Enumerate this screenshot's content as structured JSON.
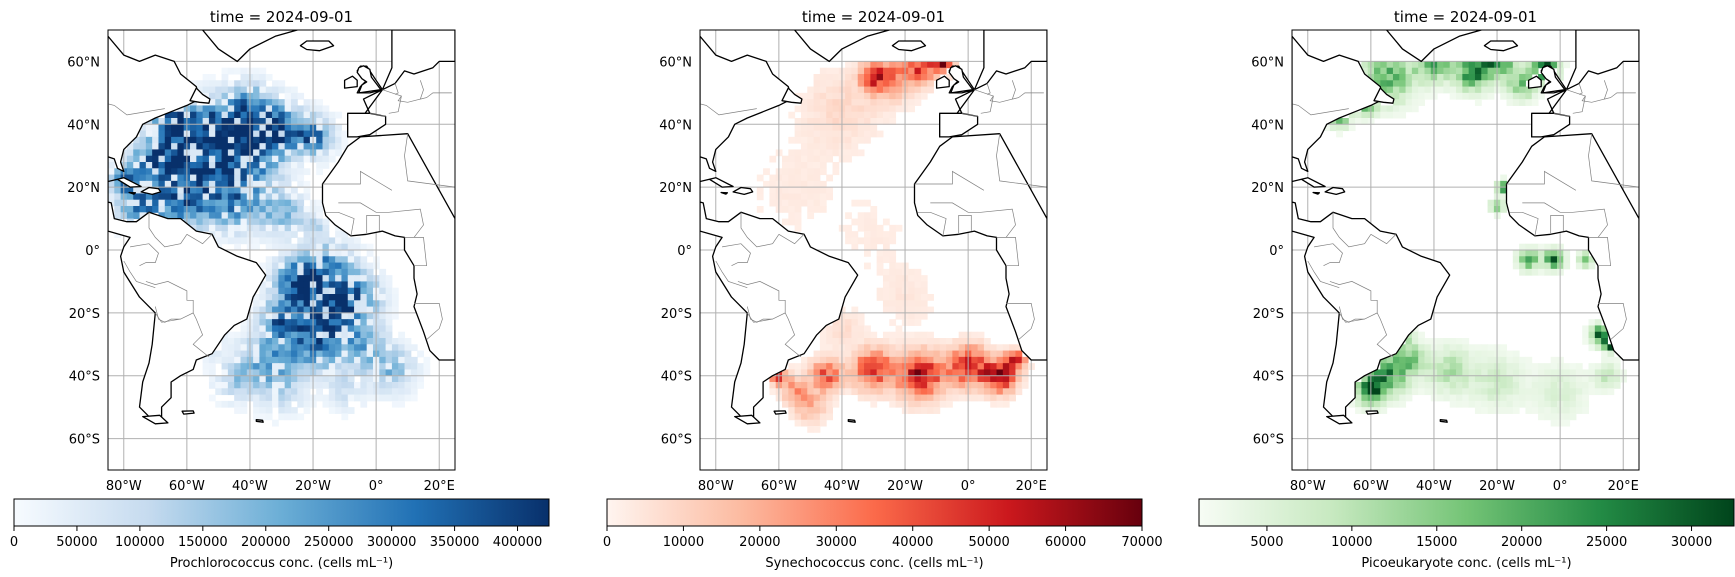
{
  "chart_data": [
    {
      "type": "heatmap",
      "title": "time = 2024-09-01",
      "colorbar": {
        "label": "Prochlorococcus conc. (cells mL⁻¹)",
        "ticks": [
          "0",
          "50000",
          "100000",
          "150000",
          "200000",
          "250000",
          "300000",
          "350000",
          "400000"
        ],
        "tick_values": [
          0,
          50000,
          100000,
          150000,
          200000,
          250000,
          300000,
          350000,
          400000
        ],
        "range": [
          0,
          425000
        ],
        "colormap": "Blues",
        "colors": [
          "#f7fbff",
          "#c6dbef",
          "#6baed6",
          "#2171b5",
          "#08306b"
        ]
      },
      "xaxis": {
        "ticks": [
          "80°W",
          "60°W",
          "40°W",
          "20°W",
          "0°",
          "20°E"
        ],
        "tick_values": [
          -80,
          -60,
          -40,
          -20,
          0,
          20
        ],
        "range": [
          -85,
          25
        ]
      },
      "yaxis": {
        "ticks": [
          "60°N",
          "40°N",
          "20°N",
          "0°",
          "20°S",
          "40°S",
          "60°S"
        ],
        "tick_values": [
          60,
          40,
          20,
          0,
          -20,
          -40,
          -60
        ],
        "range": [
          -70,
          70
        ]
      },
      "grid": true
    },
    {
      "type": "heatmap",
      "title": "time = 2024-09-01",
      "colorbar": {
        "label": "Synechococcus conc. (cells mL⁻¹)",
        "ticks": [
          "0",
          "10000",
          "20000",
          "30000",
          "40000",
          "50000",
          "60000",
          "70000"
        ],
        "tick_values": [
          0,
          10000,
          20000,
          30000,
          40000,
          50000,
          60000,
          70000
        ],
        "range": [
          0,
          70000
        ],
        "colormap": "Reds",
        "colors": [
          "#fff5f0",
          "#fcbba1",
          "#fb6a4a",
          "#cb181d",
          "#67000d"
        ]
      },
      "xaxis": {
        "ticks": [
          "80°W",
          "60°W",
          "40°W",
          "20°W",
          "0°",
          "20°E"
        ],
        "tick_values": [
          -80,
          -60,
          -40,
          -20,
          0,
          20
        ],
        "range": [
          -85,
          25
        ]
      },
      "yaxis": {
        "ticks": [
          "60°N",
          "40°N",
          "20°N",
          "0°",
          "20°S",
          "40°S",
          "60°S"
        ],
        "tick_values": [
          60,
          40,
          20,
          0,
          -20,
          -40,
          -60
        ],
        "range": [
          -70,
          70
        ]
      },
      "grid": true
    },
    {
      "type": "heatmap",
      "title": "time = 2024-09-01",
      "colorbar": {
        "label": "Picoeukaryote conc. (cells mL⁻¹)",
        "ticks": [
          "5000",
          "10000",
          "15000",
          "20000",
          "25000",
          "30000"
        ],
        "tick_values": [
          5000,
          10000,
          15000,
          20000,
          25000,
          30000
        ],
        "range": [
          1000,
          32500
        ],
        "colormap": "Greens",
        "colors": [
          "#f7fcf5",
          "#c7e9c0",
          "#74c476",
          "#238b45",
          "#00441b"
        ]
      },
      "xaxis": {
        "ticks": [
          "80°W",
          "60°W",
          "40°W",
          "20°W",
          "0°",
          "20°E"
        ],
        "tick_values": [
          -80,
          -60,
          -40,
          -20,
          0,
          20
        ],
        "range": [
          -85,
          25
        ]
      },
      "yaxis": {
        "ticks": [
          "60°N",
          "40°N",
          "20°N",
          "0°",
          "20°S",
          "40°S",
          "60°S"
        ],
        "tick_values": [
          60,
          40,
          20,
          0,
          -20,
          -40,
          -60
        ],
        "range": [
          -70,
          70
        ]
      },
      "grid": true
    }
  ]
}
